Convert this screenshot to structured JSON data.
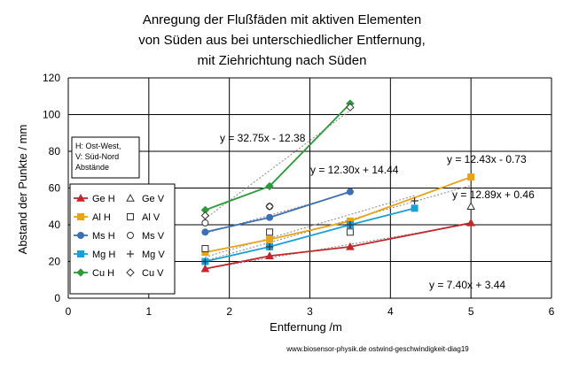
{
  "chart_data": {
    "type": "scatter",
    "title": [
      "Anregung der Flußfäden mit aktiven Elementen",
      "von Süden aus bei unterschiedlicher Entfernung,",
      "mit Ziehrichtung nach Süden"
    ],
    "xlabel": "Entfernung /m",
    "ylabel": "Abstand der Punkte / mm",
    "xlim": [
      0,
      6
    ],
    "ylim": [
      0,
      120
    ],
    "xticks": [
      "0",
      "1",
      "2",
      "3",
      "4",
      "5",
      "6"
    ],
    "yticks": [
      "0",
      "20",
      "40",
      "60",
      "80",
      "100",
      "120"
    ],
    "grid": true,
    "note": [
      "H: Ost-West,",
      "V: Süd-Nord",
      "Abstände"
    ],
    "footer": "www.biosensor-physik.de ostwind-geschwindigkeit-diag19",
    "series": [
      {
        "name": "Ge H",
        "color": "#c0282c",
        "marker": "triangle",
        "line": true,
        "x": [
          1.7,
          2.5,
          3.5,
          5.0
        ],
        "y": [
          16,
          23,
          28,
          41
        ]
      },
      {
        "name": "Ge V",
        "color": "#333333",
        "marker": "triangle-open",
        "line": false,
        "x": [
          5.0
        ],
        "y": [
          50
        ]
      },
      {
        "name": "Al H",
        "color": "#e8a317",
        "marker": "square",
        "line": true,
        "x": [
          1.7,
          2.5,
          3.5,
          5.0
        ],
        "y": [
          25,
          32,
          42,
          66
        ]
      },
      {
        "name": "Al V",
        "color": "#333333",
        "marker": "square-open",
        "line": false,
        "x": [
          1.7,
          2.5,
          3.5
        ],
        "y": [
          27,
          36,
          36
        ]
      },
      {
        "name": "Ms H",
        "color": "#3d6fb3",
        "marker": "circle",
        "line": true,
        "x": [
          1.7,
          2.5,
          3.5
        ],
        "y": [
          36,
          44,
          58
        ]
      },
      {
        "name": "Ms V",
        "color": "#333333",
        "marker": "circle-open",
        "line": false,
        "x": [
          1.7,
          2.5
        ],
        "y": [
          41,
          50
        ]
      },
      {
        "name": "Mg H",
        "color": "#1aa0d6",
        "marker": "square",
        "line": true,
        "x": [
          1.7,
          2.5,
          3.5,
          4.3
        ],
        "y": [
          20,
          28,
          40,
          49
        ]
      },
      {
        "name": "Mg V",
        "color": "#333333",
        "marker": "plus",
        "line": false,
        "x": [
          1.7,
          2.5,
          3.5,
          4.3
        ],
        "y": [
          20,
          28,
          40,
          53
        ]
      },
      {
        "name": "Cu H",
        "color": "#2e9a3c",
        "marker": "diamond",
        "line": true,
        "x": [
          1.7,
          2.5,
          3.5
        ],
        "y": [
          48,
          61,
          106
        ]
      },
      {
        "name": "Cu V",
        "color": "#333333",
        "marker": "diamond-open",
        "line": false,
        "x": [
          1.7,
          2.5,
          3.5
        ],
        "y": [
          45,
          50,
          104
        ]
      }
    ],
    "trendlines": [
      {
        "equation": "y = 32.75x - 12.38",
        "slope": 32.75,
        "intercept": -12.38,
        "x": [
          1.7,
          3.5
        ]
      },
      {
        "equation": "y = 12.30x + 14.44",
        "slope": 12.3,
        "intercept": 14.44,
        "x": [
          1.7,
          3.5
        ]
      },
      {
        "equation": "y = 12.43x - 0.73",
        "slope": 12.43,
        "intercept": -0.73,
        "x": [
          1.7,
          5.0
        ]
      },
      {
        "equation": "y = 12.89x + 0.46",
        "slope": 12.89,
        "intercept": 0.46,
        "x": [
          1.7,
          4.3
        ]
      },
      {
        "equation": "y = 7.40x + 3.44",
        "slope": 7.4,
        "intercept": 3.44,
        "x": [
          1.7,
          5.0
        ]
      }
    ],
    "trendline_color": "#888888"
  }
}
